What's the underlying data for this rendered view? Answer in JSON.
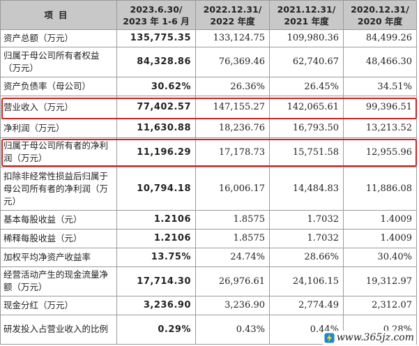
{
  "table": {
    "headers": [
      {
        "line1": "项目",
        "line2": ""
      },
      {
        "line1": "2023.6.30/",
        "line2": "2023 年 1-6 月"
      },
      {
        "line1": "2022.12.31/",
        "line2": "2022 年度"
      },
      {
        "line1": "2021.12.31/",
        "line2": "2021 年度"
      },
      {
        "line1": "2020.12.31/",
        "line2": "2020 年度"
      }
    ],
    "rows": [
      {
        "label": "资产总额（万元）",
        "values": [
          "135,775.35",
          "133,124.75",
          "109,980.36",
          "84,499.26"
        ],
        "highlight": false
      },
      {
        "label": "归属于母公司所有者权益（万元）",
        "values": [
          "84,328.86",
          "76,369.46",
          "62,740.67",
          "48,466.30"
        ],
        "highlight": false
      },
      {
        "label": "资产负债率（母公司）",
        "values": [
          "30.62%",
          "26.36%",
          "26.45%",
          "34.51%"
        ],
        "highlight": false
      },
      {
        "label": "营业收入（万元）",
        "values": [
          "77,402.57",
          "147,155.27",
          "142,065.61",
          "99,396.51"
        ],
        "highlight": true
      },
      {
        "label": "净利润（万元）",
        "values": [
          "11,630.88",
          "18,236.76",
          "16,793.50",
          "13,213.52"
        ],
        "highlight": false
      },
      {
        "label": "归属于母公司所有者的净利润（万元）",
        "values": [
          "11,196.29",
          "17,178.73",
          "15,751.58",
          "12,955.96"
        ],
        "highlight": true
      },
      {
        "label": "扣除非经常性损益后归属于母公司所有者的净利润（万元）",
        "values": [
          "10,794.18",
          "16,006.17",
          "14,484.83",
          "11,886.08"
        ],
        "highlight": false
      },
      {
        "label": "基本每股收益（元）",
        "values": [
          "1.2106",
          "1.8575",
          "1.7032",
          "1.4009"
        ],
        "highlight": false
      },
      {
        "label": "稀释每股收益（元）",
        "values": [
          "1.2106",
          "1.8575",
          "1.7032",
          "1.4009"
        ],
        "highlight": false
      },
      {
        "label": "加权平均净资产收益率",
        "values": [
          "13.75%",
          "24.74%",
          "28.66%",
          "30.40%"
        ],
        "highlight": false
      },
      {
        "label": "经营活动产生的现金流量净额（万元）",
        "values": [
          "17,714.30",
          "26,976.61",
          "24,106.15",
          "19,312.97"
        ],
        "highlight": false
      },
      {
        "label": "现金分红（万元）",
        "values": [
          "3,236.90",
          "3,236.90",
          "2,774.49",
          "2,312.07"
        ],
        "highlight": false
      },
      {
        "label": "研发投入占营业收入的比例",
        "values": [
          "0.29%",
          "0.43%",
          "0.44%",
          "0.28%"
        ],
        "highlight": false
      }
    ]
  },
  "highlight_color": "#d42020",
  "header_bg": "#c8c8c8",
  "watermark": {
    "text": "www.365jz.com",
    "icon": "lightning-bolt-icon"
  }
}
